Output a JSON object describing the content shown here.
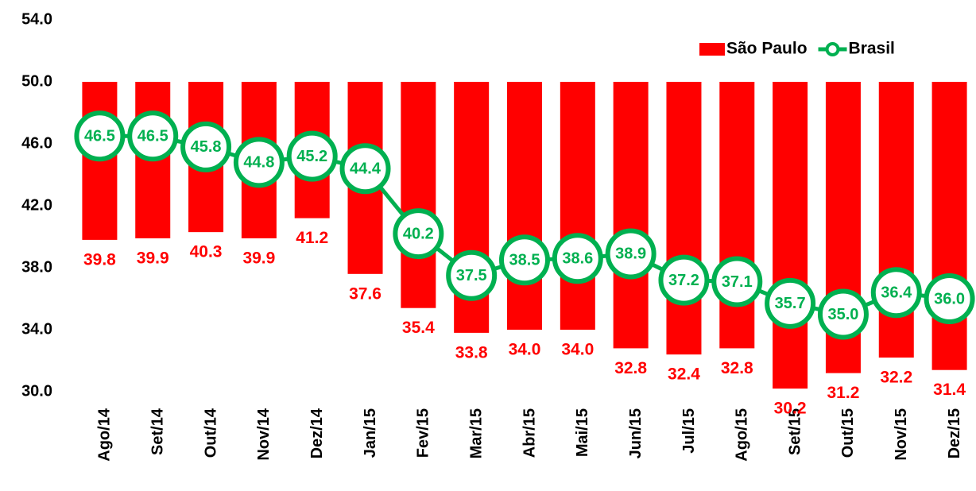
{
  "chart_data": {
    "type": "bar_line",
    "categories": [
      "Ago/14",
      "Set/14",
      "Out/14",
      "Nov/14",
      "Dez/14",
      "Jan/15",
      "Fev/15",
      "Mar/15",
      "Abr/15",
      "Mai/15",
      "Jun/15",
      "Jul/15",
      "Ago/15",
      "Set/15",
      "Out/15",
      "Nov/15",
      "Dez/15"
    ],
    "series": [
      {
        "name": "São Paulo",
        "type": "bar",
        "color": "#ff0000",
        "values": [
          39.8,
          39.9,
          40.3,
          39.9,
          41.2,
          37.6,
          35.4,
          33.8,
          34.0,
          34.0,
          32.8,
          32.4,
          32.8,
          30.2,
          31.2,
          32.2,
          31.4
        ],
        "value_labels": [
          "39.8",
          "39.9",
          "40.3",
          "39.9",
          "41.2",
          "37.6",
          "35.4",
          "33.8",
          "34.0",
          "34.0",
          "32.8",
          "32.4",
          "32.8",
          "30.2",
          "31.2",
          "32.2",
          "31.4"
        ]
      },
      {
        "name": "Brasil",
        "type": "line",
        "color": "#00b050",
        "values": [
          46.5,
          46.5,
          45.8,
          44.8,
          45.2,
          44.4,
          40.2,
          37.5,
          38.5,
          38.6,
          38.9,
          37.2,
          37.1,
          35.7,
          35.0,
          36.4,
          36.0
        ],
        "value_labels": [
          "46.5",
          "46.5",
          "45.8",
          "44.8",
          "45.2",
          "44.4",
          "40.2",
          "37.5",
          "38.5",
          "38.6",
          "38.9",
          "37.2",
          "37.1",
          "35.7",
          "35.0",
          "36.4",
          "36.0"
        ]
      }
    ],
    "ylim": [
      30,
      54
    ],
    "yticks": [
      {
        "value": 30,
        "label": "30.0"
      },
      {
        "value": 34,
        "label": "34.0"
      },
      {
        "value": 38,
        "label": "38.0"
      },
      {
        "value": 42,
        "label": "42.0"
      },
      {
        "value": 46,
        "label": "46.0"
      },
      {
        "value": 50,
        "label": "50.0"
      },
      {
        "value": 54,
        "label": "54.0"
      }
    ],
    "x_axis_crosses": 50,
    "legend": "top-right",
    "grid": false
  }
}
